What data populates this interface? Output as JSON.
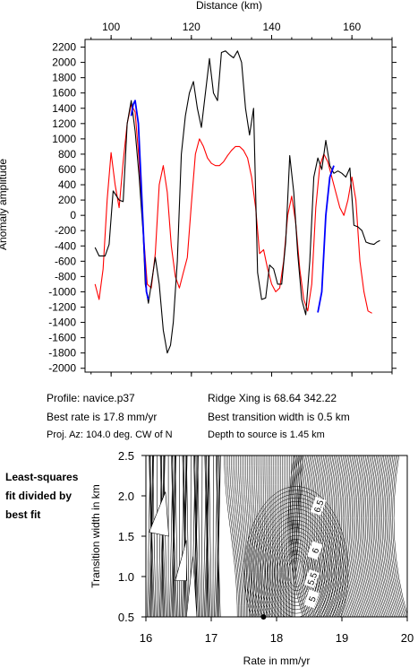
{
  "top_chart": {
    "xlabel": "Distance (km)",
    "ylabel": "Anomaly amplitude",
    "xlim": [
      93.5,
      170
    ],
    "ylim": [
      -2050,
      2300
    ],
    "x_ticks": [
      100,
      120,
      140,
      160
    ],
    "y_ticks": [
      2200,
      2000,
      1800,
      1600,
      1400,
      1200,
      1000,
      800,
      600,
      400,
      200,
      0,
      -200,
      -400,
      -600,
      -800,
      -1000,
      -1200,
      -1400,
      -1600,
      -1800,
      -2000
    ],
    "colors": {
      "observed": "#000000",
      "model": "#ff0000",
      "fit_segment": "#0000ff"
    }
  },
  "info": {
    "profile": "Profile: navice.p37",
    "ridge": "Ridge Xing is 68.64 342.22",
    "best_rate": "Best rate is 17.8 mm/yr",
    "best_width": "Best transition width is 0.5 km",
    "proj": "Proj. Az: 104.0 deg. CW of N",
    "depth": "Depth to source is   1.45 km"
  },
  "side_label": [
    "Least-squares",
    "fit divided by",
    "best fit"
  ],
  "bottom_chart": {
    "xlabel": "Rate in mm/yr",
    "ylabel": "Transition width in km",
    "xlim": [
      16,
      20
    ],
    "ylim": [
      0.5,
      2.5
    ],
    "x_ticks": [
      "16",
      "17",
      "18",
      "19",
      "20"
    ],
    "y_ticks": [
      "2.5",
      "2.0",
      "1.5",
      "1.0",
      "0.5"
    ],
    "contour_labels": [
      "6.5",
      "6",
      "5.5",
      "5"
    ],
    "best_point": {
      "rate": 17.8,
      "width": 0.5
    }
  },
  "chart_data": [
    {
      "type": "line",
      "xlabel": "Distance (km)",
      "ylabel": "Anomaly amplitude",
      "series": [
        {
          "color": "#000000",
          "x": [
            96,
            97,
            98.5,
            99.5,
            100.5,
            102,
            103,
            104,
            105,
            106,
            107,
            108,
            108.5,
            109.3,
            110,
            111,
            112,
            113,
            114,
            114.8,
            115.5,
            116.5,
            117.5,
            118.5,
            119.5,
            120.5,
            121.5,
            122.5,
            123.5,
            124.5,
            125.5,
            126.5,
            127.5,
            128.5,
            129.5,
            130.5,
            131.5,
            132.5,
            133.5,
            134.5,
            135.5,
            136.5,
            137.5,
            138.5,
            139.5,
            140.5,
            141.5,
            142.5,
            143.5,
            144.5,
            145.5,
            146.5,
            147.5,
            148.5,
            149.5,
            150.5,
            151.5,
            152.5,
            153.5,
            154.5,
            155.5,
            156.5,
            157.5,
            158.5,
            159.5,
            160.5,
            161.5,
            162.5,
            163.5,
            164.5,
            165.5,
            166.2,
            167
          ],
          "y": [
            -420,
            -530,
            -530,
            -380,
            320,
            200,
            180,
            1200,
            1500,
            1100,
            500,
            -250,
            -900,
            -1150,
            -900,
            -550,
            -900,
            -1500,
            -1800,
            -1700,
            -1400,
            -600,
            800,
            1300,
            1600,
            1750,
            1400,
            1150,
            1600,
            2050,
            1600,
            1500,
            2130,
            2150,
            2100,
            2060,
            2150,
            2000,
            1400,
            1050,
            1400,
            -750,
            -1100,
            -1080,
            -650,
            -700,
            -900,
            -900,
            -350,
            780,
            300,
            -500,
            -1100,
            -1300,
            -600,
            500,
            750,
            600,
            980,
            650,
            550,
            580,
            550,
            500,
            620,
            -130,
            -150,
            -200,
            -350,
            -370,
            -380,
            -350,
            -330
          ],
          "name": ""
        },
        {
          "color": "#ff0000",
          "x": [
            96,
            97,
            98,
            99,
            100,
            101,
            102,
            103,
            104,
            105,
            106,
            107,
            108,
            109,
            110,
            111,
            112,
            113,
            114,
            115,
            116,
            117,
            118,
            119,
            120,
            121,
            122,
            123,
            124,
            125,
            126,
            127,
            128,
            129,
            130,
            131,
            132,
            133,
            134,
            135,
            136,
            137,
            138,
            139,
            140,
            141,
            142,
            143,
            144,
            145,
            146,
            147,
            148,
            149,
            150,
            151,
            152,
            153,
            154,
            155,
            156,
            157,
            158,
            159,
            160,
            161,
            162,
            163,
            164,
            165
          ],
          "y": [
            -900,
            -1100,
            -700,
            200,
            820,
            400,
            100,
            700,
            1200,
            1450,
            1350,
            700,
            -200,
            -900,
            -950,
            -500,
            400,
            650,
            300,
            -400,
            -800,
            -950,
            -750,
            -550,
            150,
            800,
            1000,
            900,
            750,
            680,
            650,
            650,
            700,
            780,
            850,
            900,
            900,
            850,
            750,
            500,
            100,
            -500,
            -450,
            -700,
            -900,
            -1000,
            -950,
            -600,
            0,
            250,
            -100,
            -700,
            -1100,
            -1250,
            -900,
            100,
            650,
            800,
            700,
            500,
            300,
            100,
            0,
            200,
            500,
            200,
            -600,
            -1000,
            -1250,
            -1280
          ],
          "name": ""
        },
        {
          "color": "#0000ff",
          "x": [
            105,
            105.5,
            106,
            106.8,
            107.5,
            108.2,
            108.8,
            109.3
          ],
          "y": [
            1300,
            1450,
            1500,
            1200,
            400,
            -400,
            -1000,
            -1100
          ],
          "name": ""
        },
        {
          "color": "#0000ff",
          "x": [
            151.5,
            152.5,
            153.5,
            154.5,
            155.5
          ],
          "y": [
            -1270,
            -1000,
            0,
            500,
            650
          ],
          "name": ""
        }
      ]
    },
    {
      "type": "heatmap",
      "xlabel": "Rate in mm/yr",
      "ylabel": "Transition width in km",
      "x": [
        16,
        17,
        18,
        19,
        20
      ],
      "y": [
        0.5,
        1.0,
        1.5,
        2.0,
        2.5
      ],
      "annotations": [
        "6.5",
        "6",
        "5.5",
        "5"
      ]
    }
  ]
}
